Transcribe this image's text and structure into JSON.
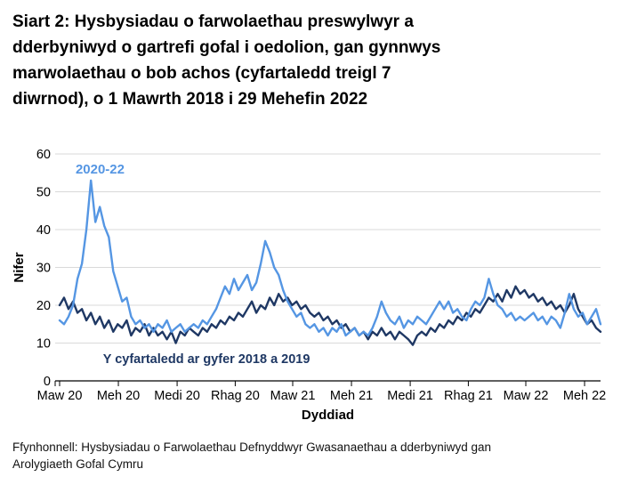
{
  "title_lines": [
    "Siart 2: Hysbysiadau o farwolaethau preswylwyr a",
    "dderbyniwyd o gartrefi gofal i oedolion, gan gynnwys",
    "marwolaethau o bob achos (cyfartaledd treigl 7",
    "diwrnod), o 1 Mawrth 2018 i 29 Mehefin 2022"
  ],
  "footer": {
    "lines": [
      "Ffynhonnell: Hysbysiadau o Farwolaethau Defnyddwyr Gwasanaethau a dderbyniwyd gan",
      "Arolygiaeth Gofal Cymru"
    ]
  },
  "colors": {
    "accent_blue": "#5596E3",
    "navy": "#1F3864",
    "gridline": "#D9D9D9",
    "axis": "#000000",
    "text": "#000000"
  },
  "chart_data": {
    "type": "line",
    "grid": "horizontal",
    "legend": "inline-labels",
    "point_interval_days": 7,
    "y_axis": {
      "label": "Nifer",
      "ticks": [
        0,
        10,
        20,
        30,
        40,
        50,
        60
      ],
      "lim": [
        0,
        60
      ]
    },
    "x_axis": {
      "label": "Dyddiad",
      "tick_labels": [
        "Maw 20",
        "Meh 20",
        "Medi 20",
        "Rhag 20",
        "Maw 21",
        "Meh 21",
        "Medi 21",
        "Rhag 21",
        "Maw 22",
        "Meh 22"
      ],
      "tick_days": [
        0,
        92,
        184,
        275,
        365,
        457,
        549,
        640,
        730,
        822
      ],
      "days_total": 847
    },
    "series": [
      {
        "name": "2020-22",
        "color": "#5596E3",
        "values": [
          16,
          15,
          17,
          20,
          27,
          31,
          40,
          53,
          42,
          46,
          41,
          38,
          29,
          25,
          21,
          22,
          17,
          15,
          16,
          14,
          15,
          13,
          15,
          14,
          16,
          13,
          14,
          15,
          13,
          14,
          15,
          14,
          16,
          15,
          17,
          19,
          22,
          25,
          23,
          27,
          24,
          26,
          28,
          24,
          26,
          31,
          37,
          34,
          30,
          28,
          24,
          21,
          19,
          17,
          18,
          15,
          14,
          15,
          13,
          14,
          12,
          14,
          13,
          15,
          12,
          13,
          14,
          12,
          13,
          12,
          14,
          17,
          21,
          18,
          16,
          15,
          17,
          14,
          16,
          15,
          17,
          16,
          15,
          17,
          19,
          21,
          19,
          21,
          18,
          19,
          17,
          16,
          19,
          21,
          20,
          22,
          27,
          23,
          20,
          19,
          17,
          18,
          16,
          17,
          16,
          17,
          18,
          16,
          17,
          15,
          17,
          16,
          14,
          18,
          23,
          19,
          17,
          18,
          15,
          17,
          19,
          15
        ]
      },
      {
        "name": "Y cyfartaledd ar gyfer 2018 a 2019",
        "color": "#1F3864",
        "values": [
          20,
          22,
          19,
          21,
          18,
          19,
          16,
          18,
          15,
          17,
          14,
          16,
          13,
          15,
          14,
          16,
          12,
          14,
          13,
          15,
          12,
          14,
          12,
          13,
          11,
          13,
          10,
          13,
          12,
          14,
          13,
          12,
          14,
          13,
          15,
          14,
          16,
          15,
          17,
          16,
          18,
          17,
          19,
          21,
          18,
          20,
          19,
          22,
          20,
          23,
          21,
          22,
          20,
          21,
          19,
          20,
          18,
          17,
          18,
          16,
          17,
          15,
          16,
          14,
          15,
          13,
          14,
          12,
          13,
          11,
          13,
          12,
          14,
          12,
          13,
          11,
          13,
          12,
          11,
          9.5,
          12,
          13,
          12,
          14,
          13,
          15,
          14,
          16,
          15,
          17,
          16,
          18,
          17,
          19,
          18,
          20,
          22,
          21,
          23,
          21,
          24,
          22,
          25,
          23,
          24,
          22,
          23,
          21,
          22,
          20,
          21,
          19,
          20,
          18,
          20,
          23,
          19,
          17,
          15,
          16,
          14,
          13
        ]
      }
    ],
    "annotations": [
      {
        "text": "2020-22",
        "color": "#5596E3",
        "x_day": 25,
        "y_value": 54.8,
        "anchor": "start",
        "font_size": 15
      },
      {
        "text": "Y cyfartaledd ar gyfer 2018 a 2019",
        "color": "#1F3864",
        "x_day": 230,
        "y_value": 4.7,
        "anchor": "middle",
        "font_size": 14.5
      }
    ]
  }
}
